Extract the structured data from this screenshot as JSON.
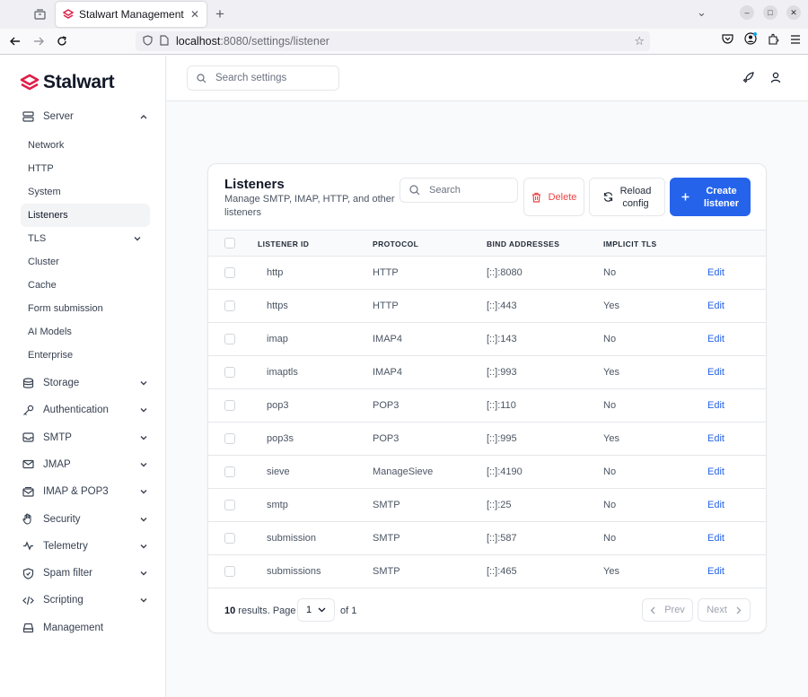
{
  "browser": {
    "tab_title": "Stalwart Management",
    "url_host": "localhost",
    "url_path": ":8080/settings/listener"
  },
  "app": {
    "brand": "Stalwart",
    "search_placeholder": "Search settings"
  },
  "sidebar": {
    "server_label": "Server",
    "server_items": [
      {
        "label": "Network"
      },
      {
        "label": "HTTP"
      },
      {
        "label": "System"
      },
      {
        "label": "Listeners",
        "active": true
      },
      {
        "label": "TLS",
        "expandable": true
      },
      {
        "label": "Cluster"
      },
      {
        "label": "Cache"
      },
      {
        "label": "Form submission"
      },
      {
        "label": "AI Models"
      },
      {
        "label": "Enterprise"
      }
    ],
    "sections": [
      {
        "label": "Storage",
        "icon": "database-icon"
      },
      {
        "label": "Authentication",
        "icon": "key-icon"
      },
      {
        "label": "SMTP",
        "icon": "inbox-icon"
      },
      {
        "label": "JMAP",
        "icon": "envelope-icon"
      },
      {
        "label": "IMAP & POP3",
        "icon": "mailbox-icon"
      },
      {
        "label": "Security",
        "icon": "hand-icon"
      },
      {
        "label": "Telemetry",
        "icon": "telemetry-icon"
      },
      {
        "label": "Spam filter",
        "icon": "shield-icon"
      },
      {
        "label": "Scripting",
        "icon": "code-icon"
      },
      {
        "label": "Management",
        "icon": "drive-icon"
      }
    ]
  },
  "listeners": {
    "title": "Listeners",
    "description": "Manage SMTP, IMAP, HTTP, and other listeners",
    "search_placeholder": "Search",
    "delete_label": "Delete",
    "reload_label_1": "Reload",
    "reload_label_2": "config",
    "create_label_1": "Create",
    "create_label_2": "listener",
    "columns": [
      "LISTENER ID",
      "PROTOCOL",
      "BIND ADDRESSES",
      "IMPLICIT TLS"
    ],
    "edit_label": "Edit",
    "rows": [
      {
        "id": "http",
        "protocol": "HTTP",
        "bind": "[::]:8080",
        "tls": "No"
      },
      {
        "id": "https",
        "protocol": "HTTP",
        "bind": "[::]:443",
        "tls": "Yes"
      },
      {
        "id": "imap",
        "protocol": "IMAP4",
        "bind": "[::]:143",
        "tls": "No"
      },
      {
        "id": "imaptls",
        "protocol": "IMAP4",
        "bind": "[::]:993",
        "tls": "Yes"
      },
      {
        "id": "pop3",
        "protocol": "POP3",
        "bind": "[::]:110",
        "tls": "No"
      },
      {
        "id": "pop3s",
        "protocol": "POP3",
        "bind": "[::]:995",
        "tls": "Yes"
      },
      {
        "id": "sieve",
        "protocol": "ManageSieve",
        "bind": "[::]:4190",
        "tls": "No"
      },
      {
        "id": "smtp",
        "protocol": "SMTP",
        "bind": "[::]:25",
        "tls": "No"
      },
      {
        "id": "submission",
        "protocol": "SMTP",
        "bind": "[::]:587",
        "tls": "No"
      },
      {
        "id": "submissions",
        "protocol": "SMTP",
        "bind": "[::]:465",
        "tls": "Yes"
      }
    ],
    "footer": {
      "count": "10",
      "results_text": " results. Page",
      "page": "1",
      "of_text": "of 1",
      "prev_label": "Prev",
      "next_label": "Next"
    }
  }
}
